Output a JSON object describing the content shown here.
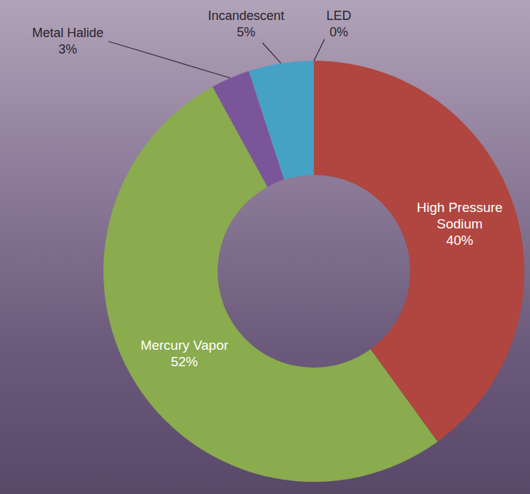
{
  "chart_data": {
    "type": "donut",
    "categories": [
      "High Pressure Sodium",
      "Mercury Vapor",
      "Metal Halide",
      "Incandescent",
      "LED"
    ],
    "values": [
      40,
      52,
      3,
      5,
      0
    ],
    "value_labels": [
      "40%",
      "52%",
      "3%",
      "5%",
      "0%"
    ],
    "colors": [
      "#b0463f",
      "#8aab4e",
      "#7b559a",
      "#46a2c4",
      "#3b6db3"
    ],
    "data_labels": true
  }
}
